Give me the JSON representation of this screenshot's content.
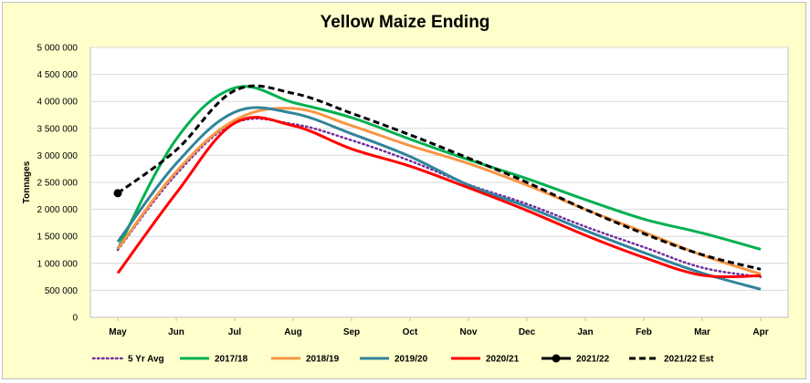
{
  "chart_data": {
    "type": "line",
    "title": "Yellow Maize Ending",
    "xlabel": "",
    "ylabel": "Tonnages",
    "categories": [
      "May",
      "Jun",
      "Jul",
      "Aug",
      "Sep",
      "Oct",
      "Nov",
      "Dec",
      "Jan",
      "Feb",
      "Mar",
      "Apr"
    ],
    "y_ticks": [
      "0",
      "500 000",
      "1 000 000",
      "1 500 000",
      "2 000 000",
      "2 500 000",
      "3 000 000",
      "3 500 000",
      "4 000 000",
      "4 500 000",
      "5 000 000"
    ],
    "ylim": [
      0,
      5000000
    ],
    "grid": true,
    "legend_position": "bottom",
    "series": [
      {
        "name": "5 Yr Avg",
        "color": "#7030a0",
        "dash": "dotted",
        "marker": "none",
        "values": [
          1250000,
          2650000,
          3600000,
          3580000,
          3280000,
          2900000,
          2460000,
          2100000,
          1680000,
          1300000,
          920000,
          750000
        ]
      },
      {
        "name": "2017/18",
        "color": "#00b050",
        "dash": "solid",
        "marker": "none",
        "values": [
          1270000,
          3300000,
          4250000,
          3980000,
          3700000,
          3300000,
          2920000,
          2570000,
          2180000,
          1820000,
          1560000,
          1260000
        ]
      },
      {
        "name": "2018/19",
        "color": "#f79646",
        "dash": "solid",
        "marker": "none",
        "values": [
          1270000,
          2700000,
          3650000,
          3870000,
          3550000,
          3180000,
          2850000,
          2450000,
          2000000,
          1580000,
          1150000,
          800000
        ]
      },
      {
        "name": "2019/20",
        "color": "#31849b",
        "dash": "solid",
        "marker": "none",
        "values": [
          1400000,
          2850000,
          3800000,
          3780000,
          3400000,
          2980000,
          2450000,
          2050000,
          1610000,
          1200000,
          820000,
          520000
        ]
      },
      {
        "name": "2020/21",
        "color": "#ff0000",
        "dash": "solid",
        "marker": "none",
        "values": [
          820000,
          2300000,
          3600000,
          3550000,
          3120000,
          2800000,
          2400000,
          1980000,
          1520000,
          1110000,
          780000,
          770000
        ]
      },
      {
        "name": "2021/22",
        "color": "#000000",
        "dash": "solid",
        "marker": "circle",
        "values": [
          2300000,
          null,
          null,
          null,
          null,
          null,
          null,
          null,
          null,
          null,
          null,
          null
        ]
      },
      {
        "name": "2021/22 Est",
        "color": "#000000",
        "dash": "dashed",
        "marker": "none",
        "values": [
          2300000,
          3100000,
          4200000,
          4150000,
          3780000,
          3380000,
          2950000,
          2500000,
          2000000,
          1550000,
          1160000,
          890000
        ]
      }
    ]
  }
}
